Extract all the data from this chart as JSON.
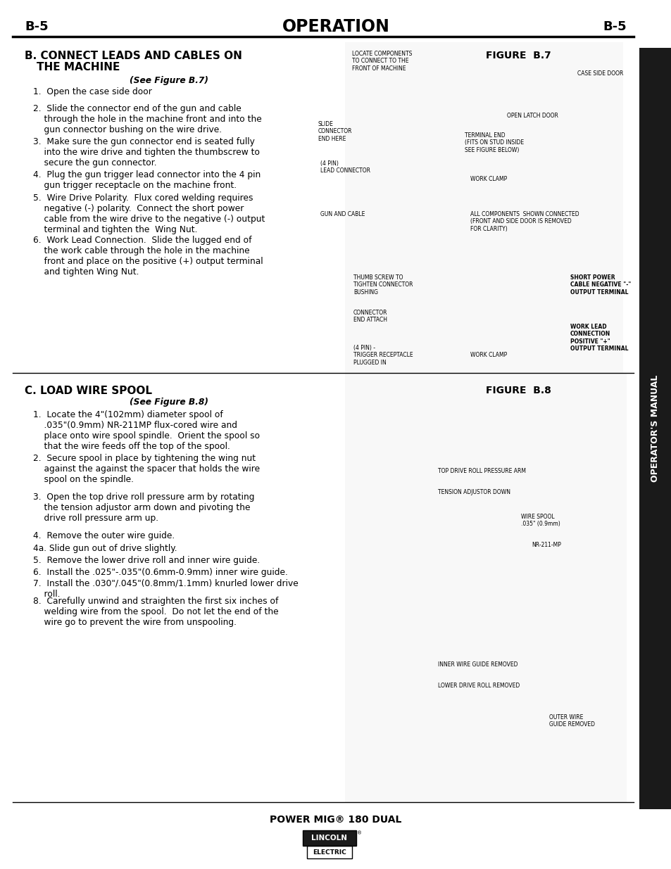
{
  "bg_color": "#ffffff",
  "page_width": 9.54,
  "page_height": 12.35,
  "header_label_left": "B-5",
  "header_title": "OPERATION",
  "header_label_right": "B-5",
  "sidebar_text": "OPERATOR'S MANUAL",
  "sidebar_bg": "#1a1a1a",
  "sidebar_text_color": "#ffffff",
  "section_b_title": "B. CONNECT LEADS AND CABLES ON\n   THE MACHINE",
  "section_b_subtitle": "(See Figure B.7)",
  "section_b_items": [
    "1.  Open the case side door",
    "2.  Slide the connector end of the gun and cable\n    through the hole in the machine front and into the\n    gun connector bushing on the wire drive.",
    "3.  Make sure the gun connector end is seated fully\n    into the wire drive and tighten the thumbscrew to\n    secure the gun connector.",
    "4.  Plug the gun trigger lead connector into the 4 pin\n    gun trigger receptacle on the machine front.",
    "5.  Wire Drive Polarity.  Flux cored welding requires\n    negative (-) polarity.  Connect the short power\n    cable from the wire drive to the negative (-) output\n    terminal and tighten the  Wing Nut.",
    "6.  Work Lead Connection.  Slide the lugged end of\n    the work cable through the hole in the machine\n    front and place on the positive (+) output terminal\n    and tighten Wing Nut."
  ],
  "figure_b7_label": "FIGURE  B.7",
  "figure_b7_annotations": [
    "LOCATE COMPONENTS\nTO CONNECT TO THE\nFRONT OF MACHINE",
    "CASE SIDE DOOR",
    "SLIDE\nCONNECTOR\nEND HERE",
    "OPEN LATCH DOOR",
    "TERMINAL END\n(FITS ON STUD INSIDE\nSEE FIGURE BELOW)",
    "(4 PIN)\nLEAD CONNECTOR",
    "WORK CLAMP",
    "GUN AND CABLE",
    "ALL COMPONENTS  SHOWN CONNECTED\n(FRONT AND SIDE DOOR IS REMOVED\nFOR CLARITY)",
    "THUMB SCREW TO\nTIGHTEN CONNECTOR\nBUSHING",
    "CONNECTOR\nEND ATTACH",
    "SHORT POWER\nCABLE NEGATIVE \"-\"\nOUTPUT TERMINAL",
    "(4 PIN) -\nTRIGGER RECEPTACLE\nPLUGGED IN",
    "WORK CLAMP",
    "WORK LEAD\nCONNECTION\nPOSITIVE \"+\"\nOUTPUT TERMINAL"
  ],
  "section_c_title": "C. LOAD WIRE SPOOL",
  "section_c_subtitle": "(See Figure B.8)",
  "section_c_items": [
    "1.  Locate the 4\"(102mm) diameter spool of\n    .035\"(0.9mm) NR-211MP flux-cored wire and\n    place onto wire spool spindle.  Orient the spool so\n    that the wire feeds off the top of the spool.",
    "2.  Secure spool in place by tightening the wing nut\n    against the against the spacer that holds the wire\n    spool on the spindle.",
    "3.  Open the top drive roll pressure arm by rotating\n    the tension adjustor arm down and pivoting the\n    drive roll pressure arm up.",
    "4.  Remove the outer wire guide.",
    "4a. Slide gun out of drive slightly.",
    "5.  Remove the lower drive roll and inner wire guide.",
    "6.  Install the .025\"-.035\"(0.6mm-0.9mm) inner wire guide.",
    "7.  Install the .030\"/.045\"(0.8mm/1.1mm) knurled lower drive\n    roll.",
    "8.  Carefully unwind and straighten the first six inches of\n    welding wire from the spool.  Do not let the end of the\n    wire go to prevent the wire from unspooling."
  ],
  "figure_b8_label": "FIGURE  B.8",
  "figure_b8_annotations": [
    "TOP DRIVE ROLL PRESSURE ARM",
    "TENSION ADJUSTOR DOWN",
    "WIRE SPOOL\n.035\" (0.9mm)",
    "NR-211-MP",
    "INNER WIRE GUIDE REMOVED",
    "LOWER DRIVE ROLL REMOVED",
    "OUTER WIRE\nGUIDE REMOVED"
  ],
  "footer_text": "POWER MIG® 180 DUAL",
  "lincoln_box1": "LINCOLN",
  "lincoln_box2": "ELECTRIC",
  "divider_color": "#000000",
  "text_color": "#000000",
  "header_font_size": 13,
  "body_font_size": 8.5,
  "section_title_font_size": 11
}
